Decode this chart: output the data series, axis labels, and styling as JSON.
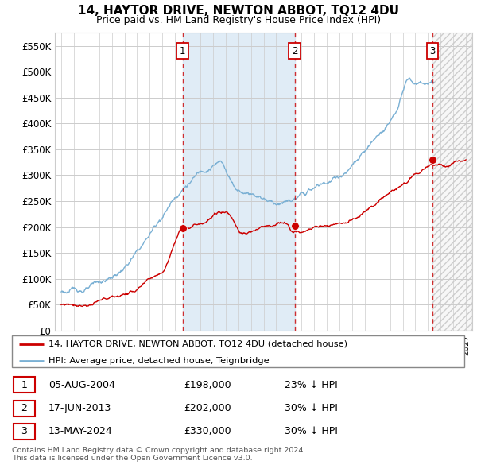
{
  "title": "14, HAYTOR DRIVE, NEWTON ABBOT, TQ12 4DU",
  "subtitle": "Price paid vs. HM Land Registry's House Price Index (HPI)",
  "house_color": "#cc0000",
  "hpi_color": "#7ab0d4",
  "ylim": [
    0,
    575000
  ],
  "yticks": [
    0,
    50000,
    100000,
    150000,
    200000,
    250000,
    300000,
    350000,
    400000,
    450000,
    500000,
    550000
  ],
  "ytick_labels": [
    "£0",
    "£50K",
    "£100K",
    "£150K",
    "£200K",
    "£250K",
    "£300K",
    "£350K",
    "£400K",
    "£450K",
    "£500K",
    "£550K"
  ],
  "sales": [
    {
      "date_num": 2004.59,
      "price": 198000,
      "label": "1"
    },
    {
      "date_num": 2013.46,
      "price": 202000,
      "label": "2"
    },
    {
      "date_num": 2024.36,
      "price": 330000,
      "label": "3"
    }
  ],
  "vline_color": "#cc0000",
  "vline_dates": [
    2004.59,
    2013.46,
    2024.36
  ],
  "legend_house": "14, HAYTOR DRIVE, NEWTON ABBOT, TQ12 4DU (detached house)",
  "legend_hpi": "HPI: Average price, detached house, Teignbridge",
  "table": [
    {
      "num": "1",
      "date": "05-AUG-2004",
      "price": "£198,000",
      "pct": "23% ↓ HPI"
    },
    {
      "num": "2",
      "date": "17-JUN-2013",
      "price": "£202,000",
      "pct": "30% ↓ HPI"
    },
    {
      "num": "3",
      "date": "13-MAY-2024",
      "price": "£330,000",
      "pct": "30% ↓ HPI"
    }
  ],
  "footnote": "Contains HM Land Registry data © Crown copyright and database right 2024.\nThis data is licensed under the Open Government Licence v3.0.",
  "blue_shade_start": 2004.59,
  "blue_shade_end": 2013.46,
  "hatch_start": 2024.36,
  "xmin": 1994.5,
  "xmax": 2027.5
}
